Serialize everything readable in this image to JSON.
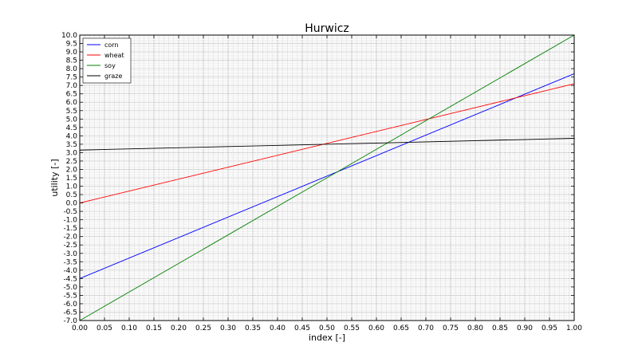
{
  "chart_data": {
    "type": "line",
    "title": "Hurwicz",
    "xlabel": "index [-]",
    "ylabel": "utility [-]",
    "xlim": [
      0.0,
      1.0
    ],
    "ylim": [
      -7.0,
      10.0
    ],
    "x_ticks": [
      "0.00",
      "0.05",
      "0.10",
      "0.15",
      "0.20",
      "0.25",
      "0.30",
      "0.35",
      "0.40",
      "0.45",
      "0.50",
      "0.55",
      "0.60",
      "0.65",
      "0.70",
      "0.75",
      "0.80",
      "0.85",
      "0.90",
      "0.95",
      "1.00"
    ],
    "y_ticks": [
      "-7.0",
      "-6.5",
      "-6.0",
      "-5.5",
      "-5.0",
      "-4.5",
      "-4.0",
      "-3.5",
      "-3.0",
      "-2.5",
      "-2.0",
      "-1.5",
      "-1.0",
      "-0.5",
      "0.0",
      "0.5",
      "1.0",
      "1.5",
      "2.0",
      "2.5",
      "3.0",
      "3.5",
      "4.0",
      "4.5",
      "5.0",
      "5.5",
      "6.0",
      "6.5",
      "7.0",
      "7.5",
      "8.0",
      "8.5",
      "9.0",
      "9.5",
      "10.0"
    ],
    "grid": true,
    "minor_grid": true,
    "legend_position": "top-left",
    "series": [
      {
        "name": "corn",
        "color": "#0000ff",
        "x": [
          0.0,
          1.0
        ],
        "values": [
          -4.5,
          7.7
        ]
      },
      {
        "name": "wheat",
        "color": "#ff0000",
        "x": [
          0.0,
          1.0
        ],
        "values": [
          0.0,
          7.1
        ]
      },
      {
        "name": "soy",
        "color": "#008000",
        "x": [
          0.0,
          1.0
        ],
        "values": [
          -7.0,
          10.0
        ]
      },
      {
        "name": "graze",
        "color": "#000000",
        "x": [
          0.0,
          1.0
        ],
        "values": [
          3.15,
          3.85
        ]
      }
    ]
  }
}
